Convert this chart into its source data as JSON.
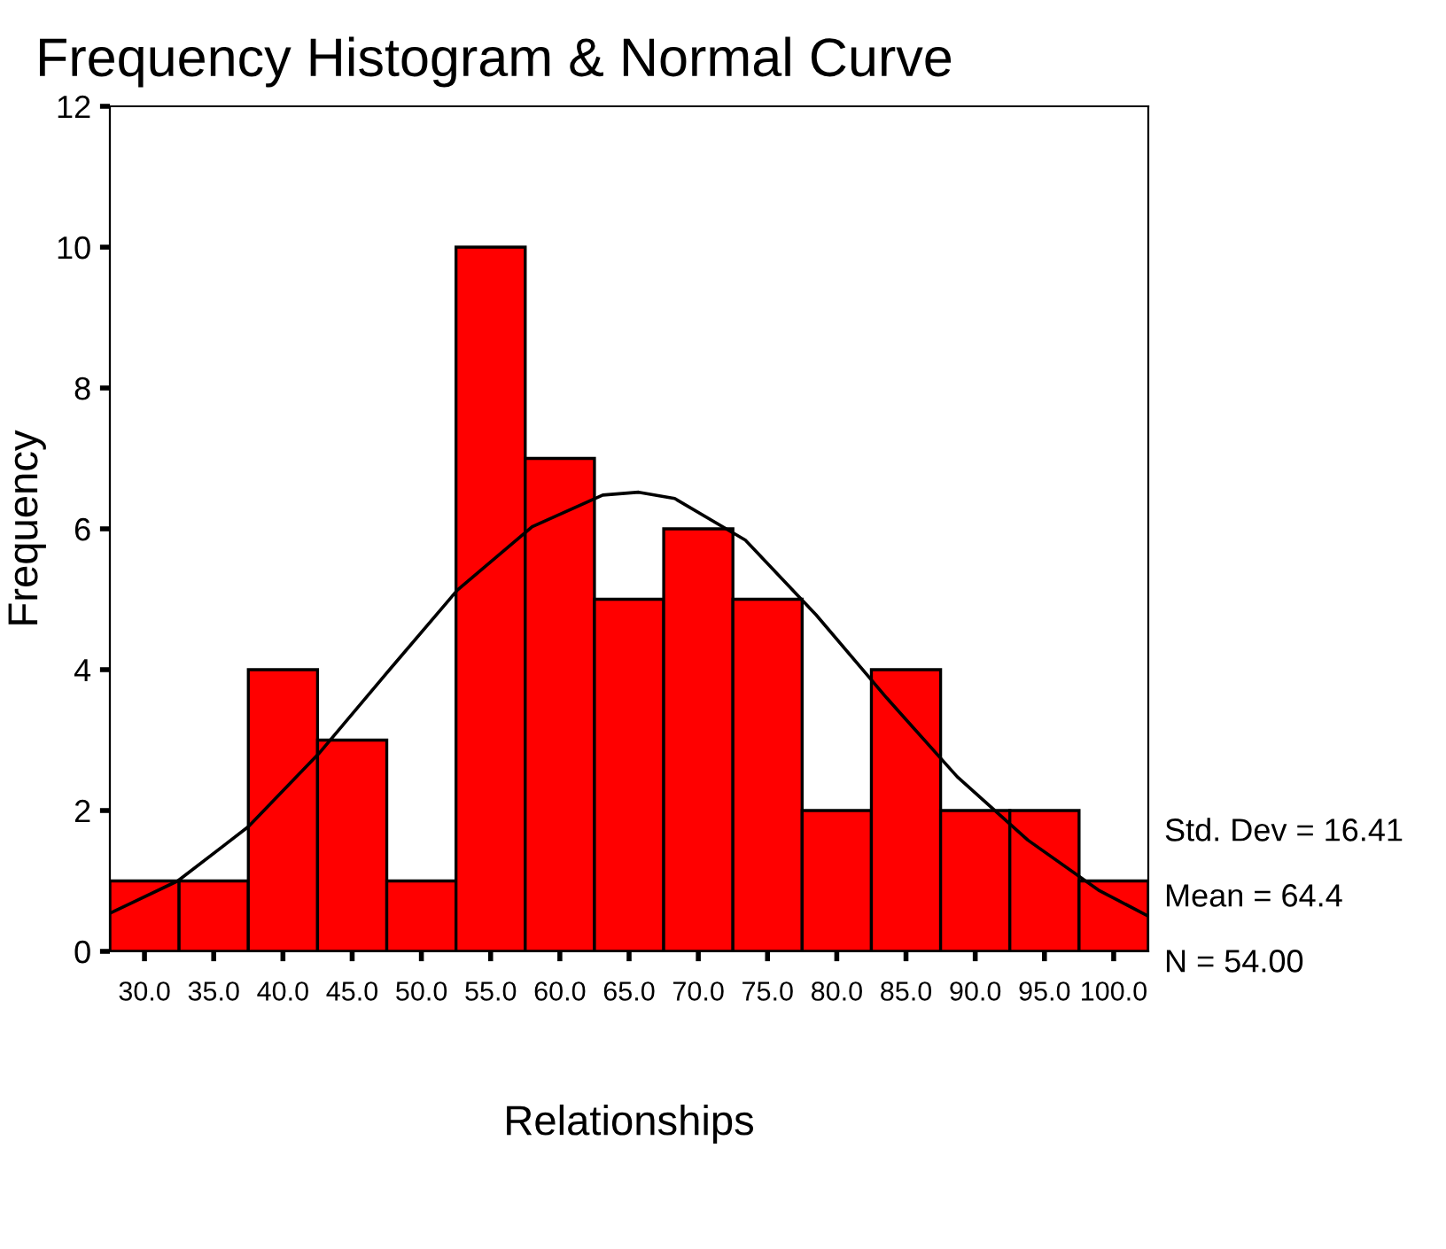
{
  "chart_data": {
    "type": "histogram",
    "title": "Frequency Histogram & Normal Curve",
    "xlabel": "Relationships",
    "ylabel": "Frequency",
    "bins": [
      27.5,
      32.5,
      37.5,
      42.5,
      47.5,
      52.5,
      57.5,
      62.5,
      67.5,
      72.5,
      77.5,
      82.5,
      87.5,
      92.5,
      97.5,
      102.5
    ],
    "series": [
      {
        "color": "#ff0000",
        "values": [
          1,
          1,
          4,
          3,
          1,
          10,
          7,
          5,
          6,
          5,
          2,
          4,
          2,
          2,
          1
        ]
      },
      {
        "type": "line",
        "color": "#000000",
        "x": [
          27.5,
          32.4,
          37.5,
          42.6,
          47.7,
          52.6,
          58.0,
          63.1,
          65.7,
          68.3,
          73.4,
          78.5,
          83.6,
          88.7,
          93.8,
          98.9,
          102.5
        ],
        "values": [
          0.54,
          1.0,
          1.77,
          2.81,
          4.0,
          5.13,
          6.03,
          6.48,
          6.52,
          6.43,
          5.84,
          4.78,
          3.6,
          2.48,
          1.58,
          0.87,
          0.5
        ]
      }
    ],
    "xlim": [
      27.5,
      102.5
    ],
    "ylim": [
      0,
      12
    ],
    "xticks": [
      {
        "value": 30,
        "label": "30.0"
      },
      {
        "value": 35,
        "label": "35.0"
      },
      {
        "value": 40,
        "label": "40.0"
      },
      {
        "value": 45,
        "label": "45.0"
      },
      {
        "value": 50,
        "label": "50.0"
      },
      {
        "value": 55,
        "label": "55.0"
      },
      {
        "value": 60,
        "label": "60.0"
      },
      {
        "value": 65,
        "label": "65.0"
      },
      {
        "value": 70,
        "label": "70.0"
      },
      {
        "value": 75,
        "label": "75.0"
      },
      {
        "value": 80,
        "label": "80.0"
      },
      {
        "value": 85,
        "label": "85.0"
      },
      {
        "value": 90,
        "label": "90.0"
      },
      {
        "value": 95,
        "label": "95.0"
      },
      {
        "value": 100,
        "label": "100.0"
      }
    ],
    "yticks": [
      0,
      2,
      4,
      6,
      8,
      10,
      12
    ],
    "annotations": [
      "Std. Dev = 16.41",
      "Mean = 64.4",
      "N = 54.00"
    ],
    "grid": false,
    "legend": false
  }
}
